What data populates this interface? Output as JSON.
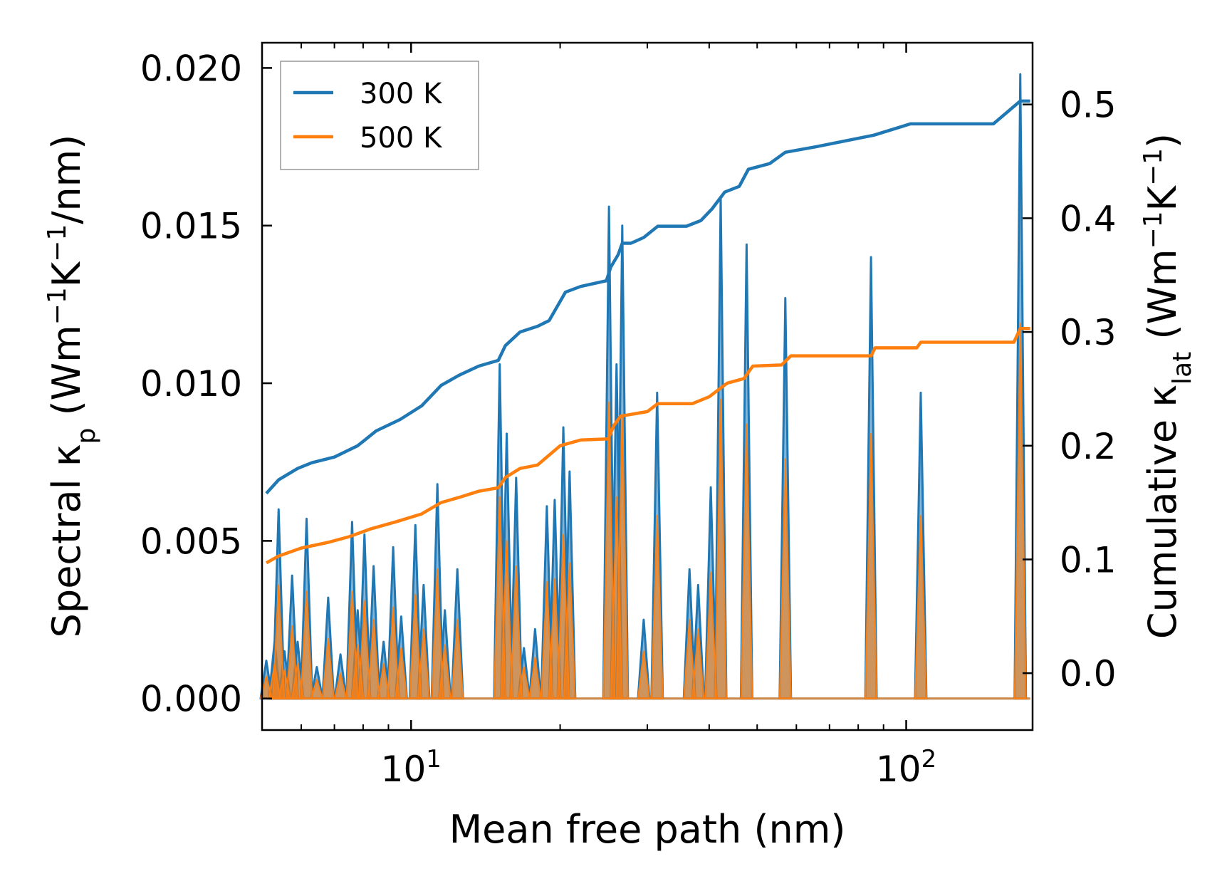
{
  "chart_data": {
    "type": "line",
    "xscale": "log",
    "xlim": [
      5.0,
      180.0
    ],
    "ylim_left": [
      -0.001,
      0.0208
    ],
    "ylim_right": [
      -0.05,
      0.5543
    ],
    "xlabel_prefix": "Mean free path (nm)",
    "ylabel_left": {
      "prefix": "Spectral κ",
      "sub": "p",
      "mid": " (Wm",
      "sup1": "−1",
      "mid2": "K",
      "sup2": "−1",
      "suffix": "/nm)"
    },
    "ylabel_right": {
      "prefix": "Cumulative κ",
      "sub": "lat",
      "mid": " (Wm",
      "sup1": "−1",
      "mid2": "K",
      "sup2": "−1",
      "suffix": ")"
    },
    "x_ticks": [
      {
        "value": 10,
        "base": "10",
        "exp": "1"
      },
      {
        "value": 100,
        "base": "10",
        "exp": "2"
      }
    ],
    "x_minor_ticks": [
      6,
      7,
      8,
      9,
      20,
      30,
      40,
      50,
      60,
      70,
      80,
      90
    ],
    "y_left_ticks": [
      {
        "value": 0.0,
        "label": "0.000"
      },
      {
        "value": 0.005,
        "label": "0.005"
      },
      {
        "value": 0.01,
        "label": "0.010"
      },
      {
        "value": 0.015,
        "label": "0.015"
      },
      {
        "value": 0.02,
        "label": "0.020"
      }
    ],
    "y_right_ticks": [
      {
        "value": 0.0,
        "label": "0.0"
      },
      {
        "value": 0.1,
        "label": "0.1"
      },
      {
        "value": 0.2,
        "label": "0.2"
      },
      {
        "value": 0.3,
        "label": "0.3"
      },
      {
        "value": 0.4,
        "label": "0.4"
      },
      {
        "value": 0.5,
        "label": "0.5"
      }
    ],
    "legend": {
      "position": "upper-left",
      "entries": [
        {
          "label": "300 K",
          "color": "#1f77b4"
        },
        {
          "label": "500 K",
          "color": "#ff7f0e"
        }
      ]
    },
    "spectral_series": [
      {
        "name": "300 K",
        "color": "#1f77b4",
        "fill_color": "#1f77b4",
        "spikes": [
          [
            5.1,
            0.0012
          ],
          [
            5.3,
            0.0018
          ],
          [
            5.4,
            0.006
          ],
          [
            5.55,
            0.0015
          ],
          [
            5.75,
            0.0039
          ],
          [
            5.9,
            0.0018
          ],
          [
            6.15,
            0.0057
          ],
          [
            6.45,
            0.001
          ],
          [
            6.8,
            0.0032
          ],
          [
            7.2,
            0.0014
          ],
          [
            7.6,
            0.0056
          ],
          [
            7.8,
            0.0028
          ],
          [
            8.05,
            0.0052
          ],
          [
            8.4,
            0.0042
          ],
          [
            8.8,
            0.0018
          ],
          [
            9.2,
            0.0048
          ],
          [
            9.55,
            0.0026
          ],
          [
            10.2,
            0.0055
          ],
          [
            10.6,
            0.0036
          ],
          [
            11.3,
            0.0068
          ],
          [
            11.7,
            0.0028
          ],
          [
            12.4,
            0.0041
          ],
          [
            15.1,
            0.0106
          ],
          [
            15.6,
            0.0084
          ],
          [
            16.3,
            0.007
          ],
          [
            16.9,
            0.0016
          ],
          [
            17.8,
            0.0022
          ],
          [
            18.8,
            0.0061
          ],
          [
            19.5,
            0.0063
          ],
          [
            20.3,
            0.0086
          ],
          [
            20.9,
            0.0072
          ],
          [
            25.1,
            0.0156
          ],
          [
            26.0,
            0.0106
          ],
          [
            26.7,
            0.015
          ],
          [
            29.5,
            0.0025
          ],
          [
            31.4,
            0.0097
          ],
          [
            36.5,
            0.0041
          ],
          [
            38.0,
            0.0036
          ],
          [
            40.3,
            0.0067
          ],
          [
            42.2,
            0.0159
          ],
          [
            47.6,
            0.0144
          ],
          [
            57.0,
            0.0127
          ],
          [
            84.9,
            0.014
          ],
          [
            107.0,
            0.0097
          ],
          [
            170.0,
            0.0198
          ]
        ]
      },
      {
        "name": "500 K",
        "color": "#ff7f0e",
        "fill_color": "#ff7f0e",
        "spikes": [
          [
            5.1,
            0.0007
          ],
          [
            5.3,
            0.0011
          ],
          [
            5.4,
            0.0036
          ],
          [
            5.55,
            0.0009
          ],
          [
            5.75,
            0.0023
          ],
          [
            5.9,
            0.0011
          ],
          [
            6.15,
            0.0034
          ],
          [
            6.45,
            0.0006
          ],
          [
            6.8,
            0.0019
          ],
          [
            7.2,
            0.0008
          ],
          [
            7.6,
            0.0034
          ],
          [
            7.8,
            0.0017
          ],
          [
            8.05,
            0.0031
          ],
          [
            8.4,
            0.0025
          ],
          [
            8.8,
            0.0011
          ],
          [
            9.2,
            0.0029
          ],
          [
            9.55,
            0.0016
          ],
          [
            10.2,
            0.0033
          ],
          [
            10.6,
            0.0022
          ],
          [
            11.3,
            0.0041
          ],
          [
            11.7,
            0.0017
          ],
          [
            12.4,
            0.0025
          ],
          [
            15.1,
            0.0064
          ],
          [
            15.6,
            0.005
          ],
          [
            16.3,
            0.0042
          ],
          [
            16.9,
            0.001
          ],
          [
            17.8,
            0.0013
          ],
          [
            18.8,
            0.0037
          ],
          [
            19.5,
            0.0038
          ],
          [
            20.3,
            0.0052
          ],
          [
            20.9,
            0.0043
          ],
          [
            25.1,
            0.0094
          ],
          [
            26.0,
            0.0064
          ],
          [
            26.7,
            0.009
          ],
          [
            29.5,
            0.0015
          ],
          [
            31.4,
            0.0058
          ],
          [
            36.5,
            0.0025
          ],
          [
            38.0,
            0.0022
          ],
          [
            40.3,
            0.004
          ],
          [
            42.2,
            0.0095
          ],
          [
            47.6,
            0.0087
          ],
          [
            57.0,
            0.0076
          ],
          [
            84.9,
            0.0084
          ],
          [
            107.0,
            0.0058
          ],
          [
            170.0,
            0.0119
          ]
        ]
      }
    ],
    "cumulative_series": [
      {
        "name": "300 K",
        "color": "#1f77b4",
        "points": [
          [
            5.1,
            0.158
          ],
          [
            5.4,
            0.17
          ],
          [
            5.9,
            0.18
          ],
          [
            6.3,
            0.185
          ],
          [
            7.0,
            0.19
          ],
          [
            7.8,
            0.2
          ],
          [
            8.5,
            0.213
          ],
          [
            9.5,
            0.223
          ],
          [
            10.5,
            0.235
          ],
          [
            11.5,
            0.253
          ],
          [
            12.5,
            0.262
          ],
          [
            13.7,
            0.27
          ],
          [
            15.0,
            0.275
          ],
          [
            15.5,
            0.288
          ],
          [
            16.6,
            0.3
          ],
          [
            18.0,
            0.305
          ],
          [
            19.0,
            0.31
          ],
          [
            20.5,
            0.335
          ],
          [
            22.0,
            0.34
          ],
          [
            24.8,
            0.345
          ],
          [
            25.3,
            0.357
          ],
          [
            26.2,
            0.368
          ],
          [
            26.7,
            0.378
          ],
          [
            27.8,
            0.378
          ],
          [
            29.5,
            0.383
          ],
          [
            31.5,
            0.393
          ],
          [
            36.0,
            0.393
          ],
          [
            38.5,
            0.398
          ],
          [
            40.5,
            0.408
          ],
          [
            43.0,
            0.423
          ],
          [
            46.0,
            0.428
          ],
          [
            48.0,
            0.443
          ],
          [
            53.0,
            0.448
          ],
          [
            57.0,
            0.458
          ],
          [
            66.0,
            0.463
          ],
          [
            86.0,
            0.473
          ],
          [
            102.0,
            0.483
          ],
          [
            150.0,
            0.483
          ],
          [
            170.0,
            0.503
          ],
          [
            178.0,
            0.503
          ]
        ]
      },
      {
        "name": "500 K",
        "color": "#ff7f0e",
        "points": [
          [
            5.1,
            0.097
          ],
          [
            5.4,
            0.103
          ],
          [
            6.0,
            0.11
          ],
          [
            6.8,
            0.115
          ],
          [
            7.5,
            0.12
          ],
          [
            8.3,
            0.127
          ],
          [
            9.3,
            0.133
          ],
          [
            10.5,
            0.14
          ],
          [
            11.5,
            0.15
          ],
          [
            12.6,
            0.155
          ],
          [
            13.7,
            0.16
          ],
          [
            15.0,
            0.163
          ],
          [
            15.5,
            0.172
          ],
          [
            16.6,
            0.18
          ],
          [
            18.0,
            0.183
          ],
          [
            20.0,
            0.2
          ],
          [
            22.0,
            0.205
          ],
          [
            25.0,
            0.206
          ],
          [
            25.7,
            0.218
          ],
          [
            26.5,
            0.226
          ],
          [
            30.0,
            0.23
          ],
          [
            31.5,
            0.237
          ],
          [
            37.0,
            0.237
          ],
          [
            40.0,
            0.243
          ],
          [
            43.5,
            0.255
          ],
          [
            47.0,
            0.259
          ],
          [
            49.0,
            0.27
          ],
          [
            56.0,
            0.271
          ],
          [
            58.5,
            0.279
          ],
          [
            85.0,
            0.279
          ],
          [
            86.5,
            0.286
          ],
          [
            105.0,
            0.286
          ],
          [
            107.0,
            0.291
          ],
          [
            165.0,
            0.291
          ],
          [
            170.0,
            0.303
          ],
          [
            178.0,
            0.303
          ]
        ]
      }
    ]
  }
}
